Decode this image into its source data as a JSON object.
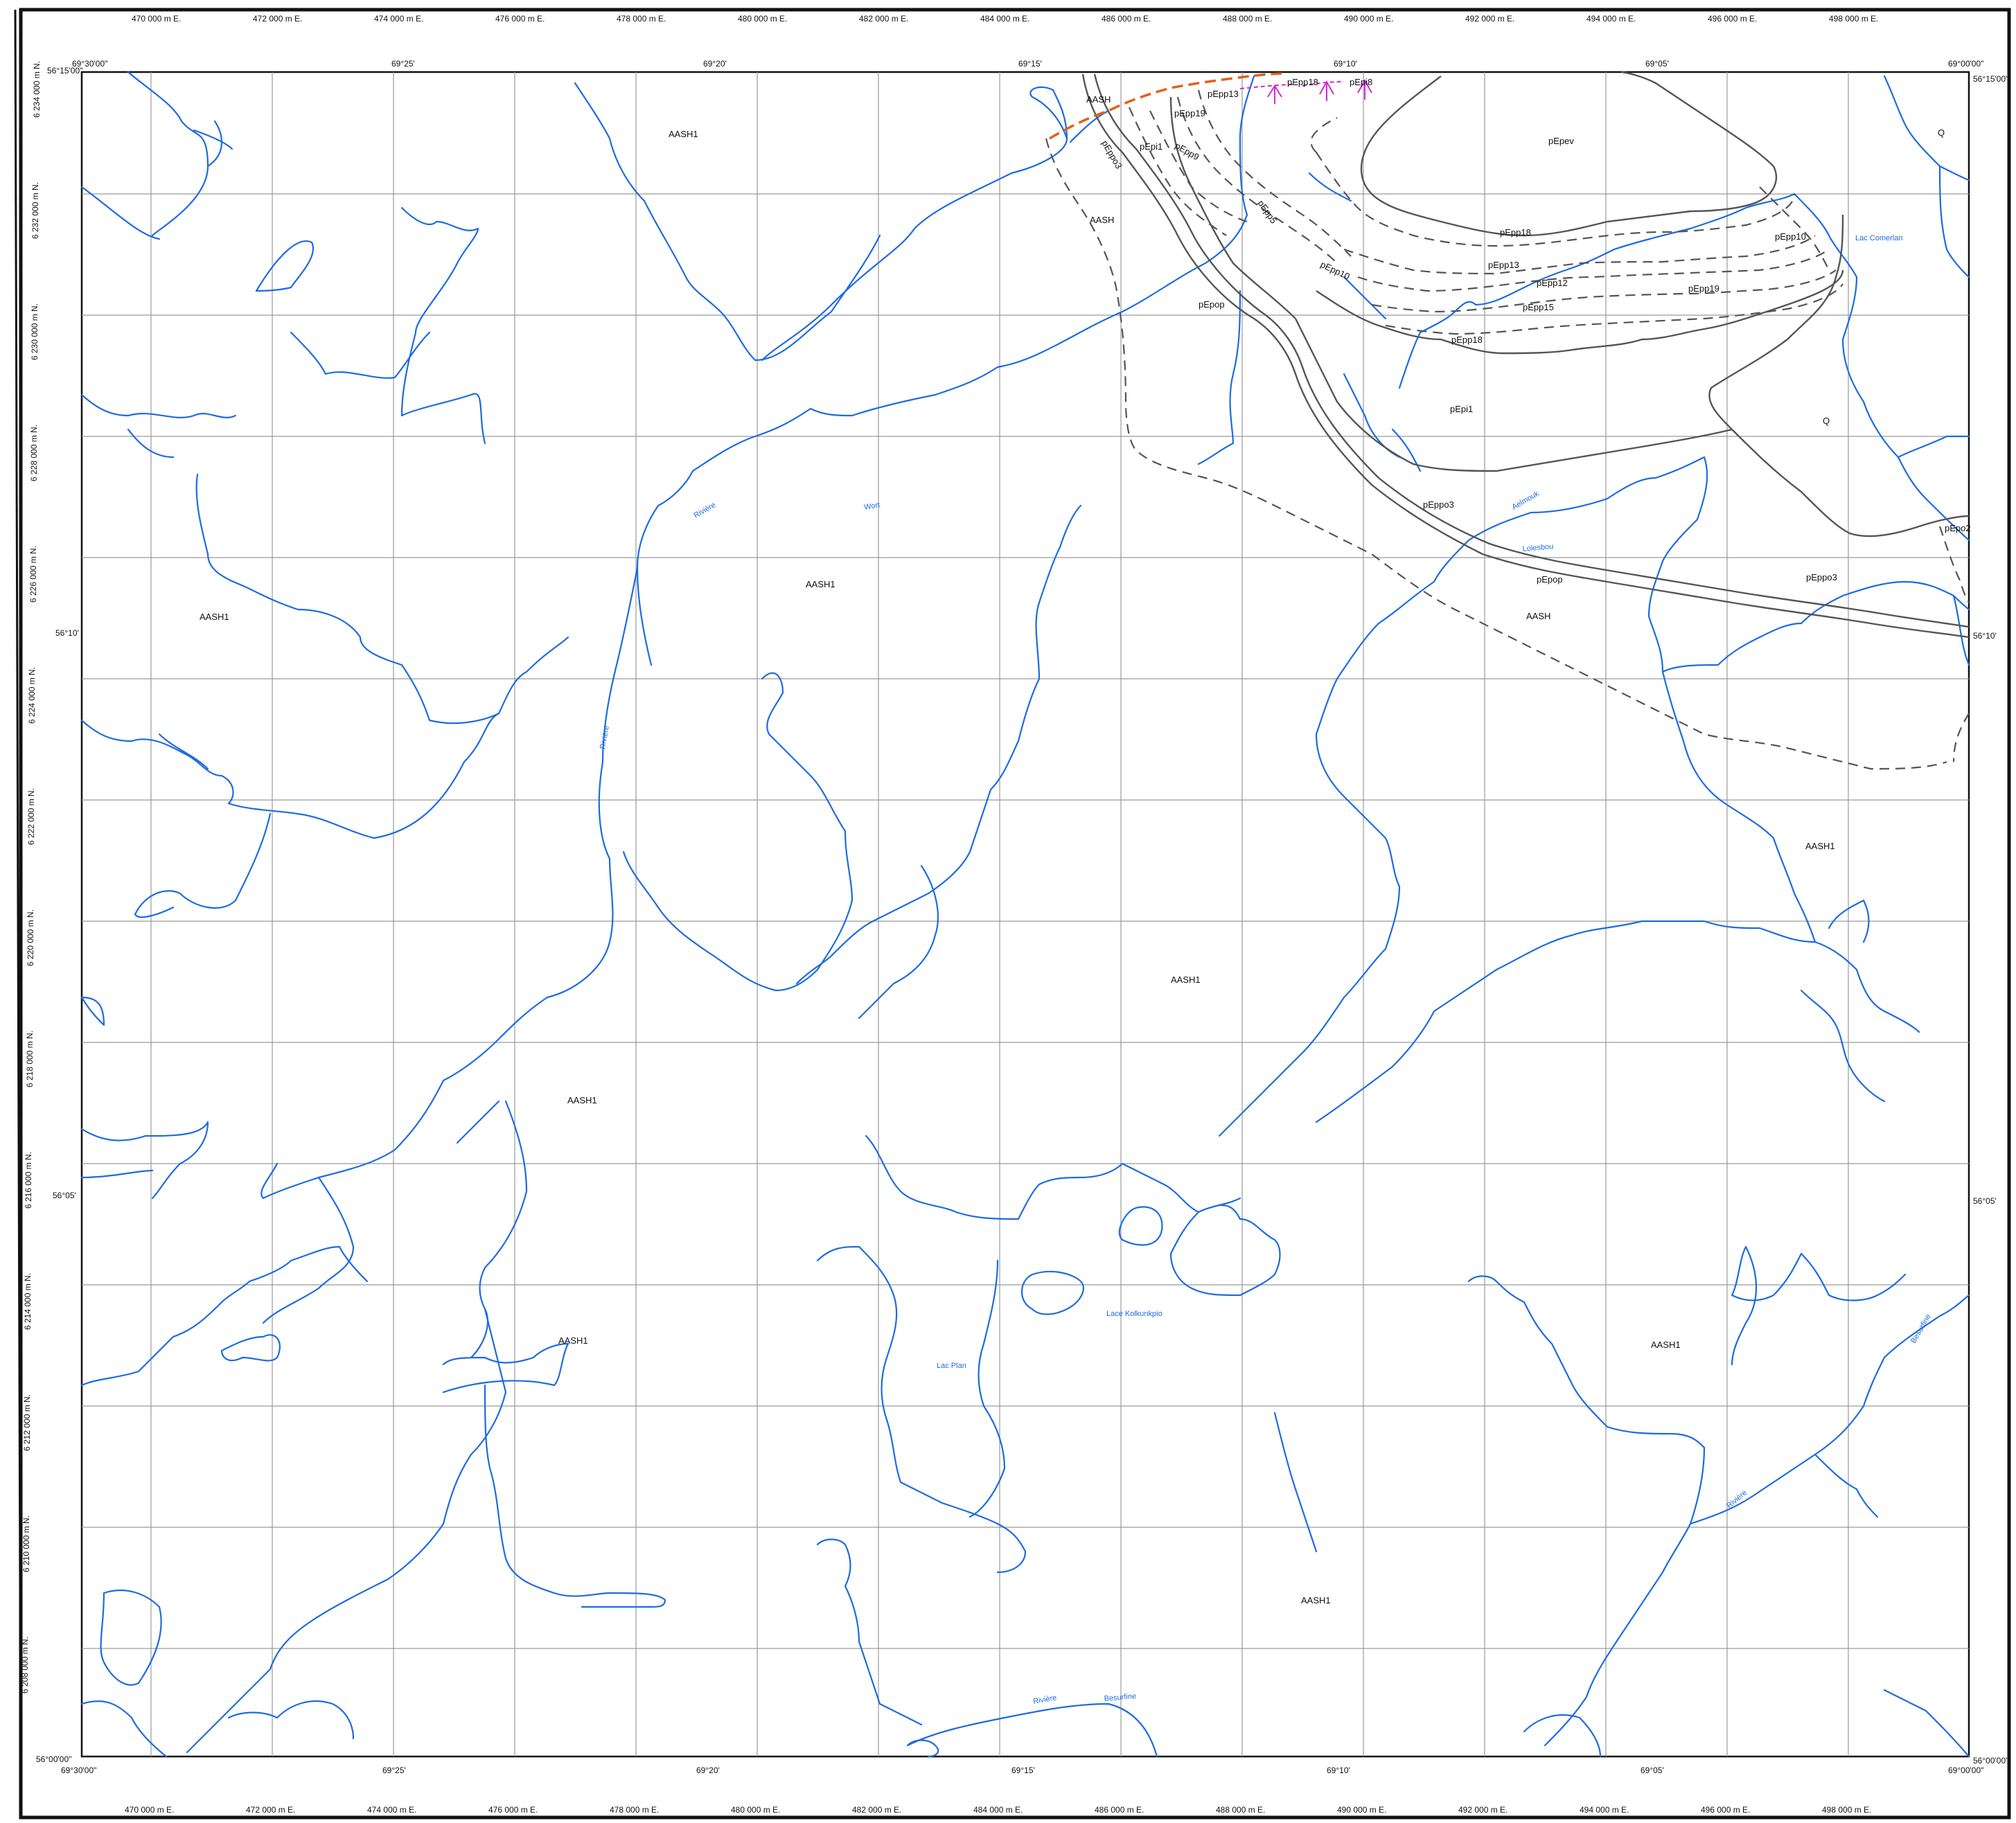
{
  "colors": {
    "hydro": "#1e6be0",
    "grid": "#9a9a9a",
    "contact": "#555555",
    "fault": "#e2601a",
    "symbol": "#d12ad6",
    "frame": "#111111"
  },
  "easting_labels": [
    "470 000 m E.",
    "472 000 m E.",
    "474 000 m E.",
    "476 000 m E.",
    "478 000 m E.",
    "480 000 m E.",
    "482 000 m E.",
    "484 000 m E.",
    "486 000 m E.",
    "488 000 m E.",
    "490 000 m E.",
    "492 000 m E.",
    "494 000 m E.",
    "496 000 m E.",
    "498 000 m E."
  ],
  "northing_labels": [
    "6 234 000 m N.",
    "6 232 000 m N.",
    "6 230 000 m N.",
    "6 228 000 m N.",
    "6 226 000 m N.",
    "6 224 000 m N.",
    "6 222 000 m N.",
    "6 220 000 m N.",
    "6 218 000 m N.",
    "6 216 000 m N.",
    "6 214 000 m N.",
    "6 212 000 m N.",
    "6 210 000 m N.",
    "6 208 000 m N."
  ],
  "corners": {
    "top_left": "56°15'00\"",
    "top_left_lon": "69°30'00\"",
    "top_right": "56°15'00\"",
    "top_right_lon": "69°00'00\"",
    "bottom_left": "56°00'00\"",
    "bottom_left_lon": "69°30'00\"",
    "bottom_right": "56°00'00\"",
    "bottom_right_lon": "69°00'00\""
  },
  "lon_ticks": [
    "69°25'",
    "69°20'",
    "69°15'",
    "69°10'",
    "69°05'"
  ],
  "lat_ticks": [
    "56°10'",
    "56°05'"
  ],
  "units": [
    "AASH1",
    "AASH",
    "AASH",
    "pEpp13",
    "pEpp18",
    "pEpp19",
    "pEpp9",
    "pEpi1",
    "pEppo3",
    "pEpp5",
    "pEpp10",
    "pEpev",
    "pEpp18",
    "pEpp13",
    "pEpp12",
    "pEpp15",
    "pEpp18",
    "pEpp10",
    "pEpp19",
    "pEpi1",
    "Q",
    "Q",
    "pEppo3",
    "pEpop",
    "pEpop",
    "pEpo2",
    "pEppo3",
    "AASH",
    "AASH1",
    "AASH1",
    "AASH1",
    "AASH1",
    "AASH1",
    "AASH1",
    "AASH1",
    "AASH1",
    "pEpi8"
  ],
  "places": [
    "Lac Comerlan",
    "Rivière",
    "Wort",
    "Lolesbou",
    "Rivière",
    "Lac Plan",
    "Lace Kolkunkpio",
    "Rivière",
    "Besurfine",
    "Rivière",
    "Besurfine",
    "Aelmouk"
  ]
}
